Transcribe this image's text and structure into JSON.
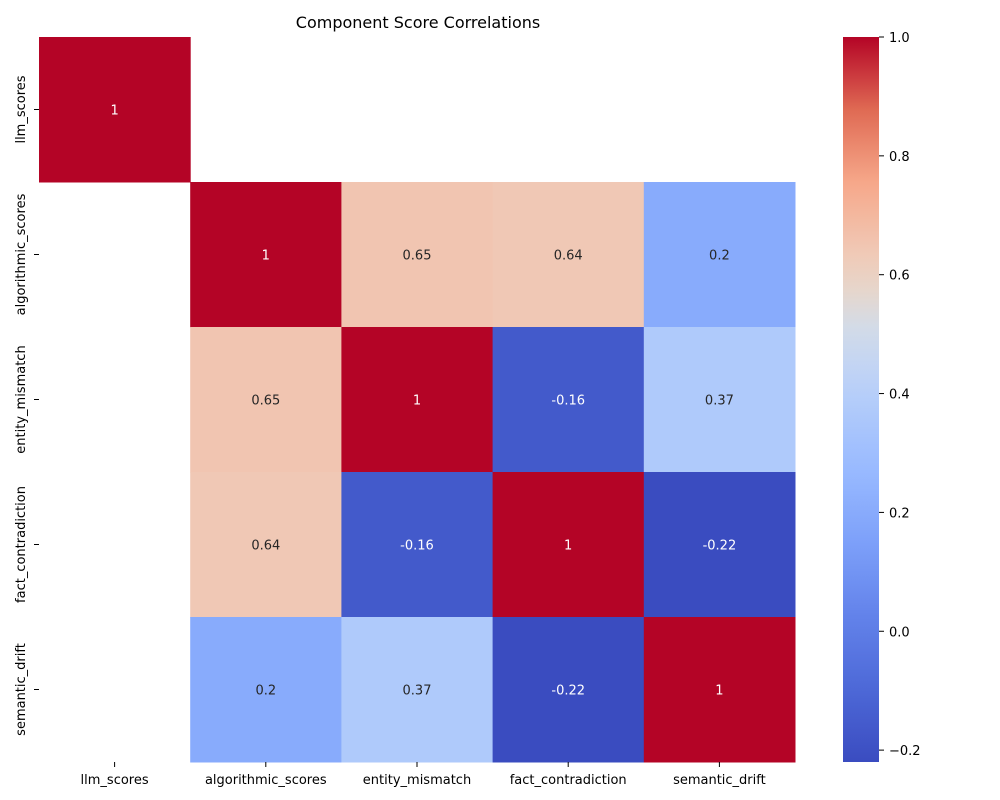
{
  "chart_data": {
    "type": "heatmap",
    "title": "Component Score Correlations",
    "xlabel": "",
    "ylabel": "",
    "x_categories": [
      "llm_scores",
      "algorithmic_scores",
      "entity_mismatch",
      "fact_contradiction",
      "semantic_drift"
    ],
    "y_categories": [
      "llm_scores",
      "algorithmic_scores",
      "entity_mismatch",
      "fact_contradiction",
      "semantic_drift"
    ],
    "values": [
      [
        1,
        null,
        null,
        null,
        null
      ],
      [
        null,
        1,
        0.65,
        0.64,
        0.2
      ],
      [
        null,
        0.65,
        1,
        -0.16,
        0.37
      ],
      [
        null,
        0.64,
        -0.16,
        1,
        -0.22
      ],
      [
        null,
        0.2,
        0.37,
        -0.22,
        1
      ]
    ],
    "colormap": "coolwarm",
    "color_range": [
      -0.22,
      1.0
    ],
    "colorbar_ticks": [
      -0.2,
      0.0,
      0.2,
      0.4,
      0.6,
      0.8,
      1.0
    ],
    "colorbar_tick_labels": [
      "−0.2",
      "0.0",
      "0.2",
      "0.4",
      "0.6",
      "0.8",
      "1.0"
    ],
    "annotated": true,
    "colorbar": "right"
  }
}
